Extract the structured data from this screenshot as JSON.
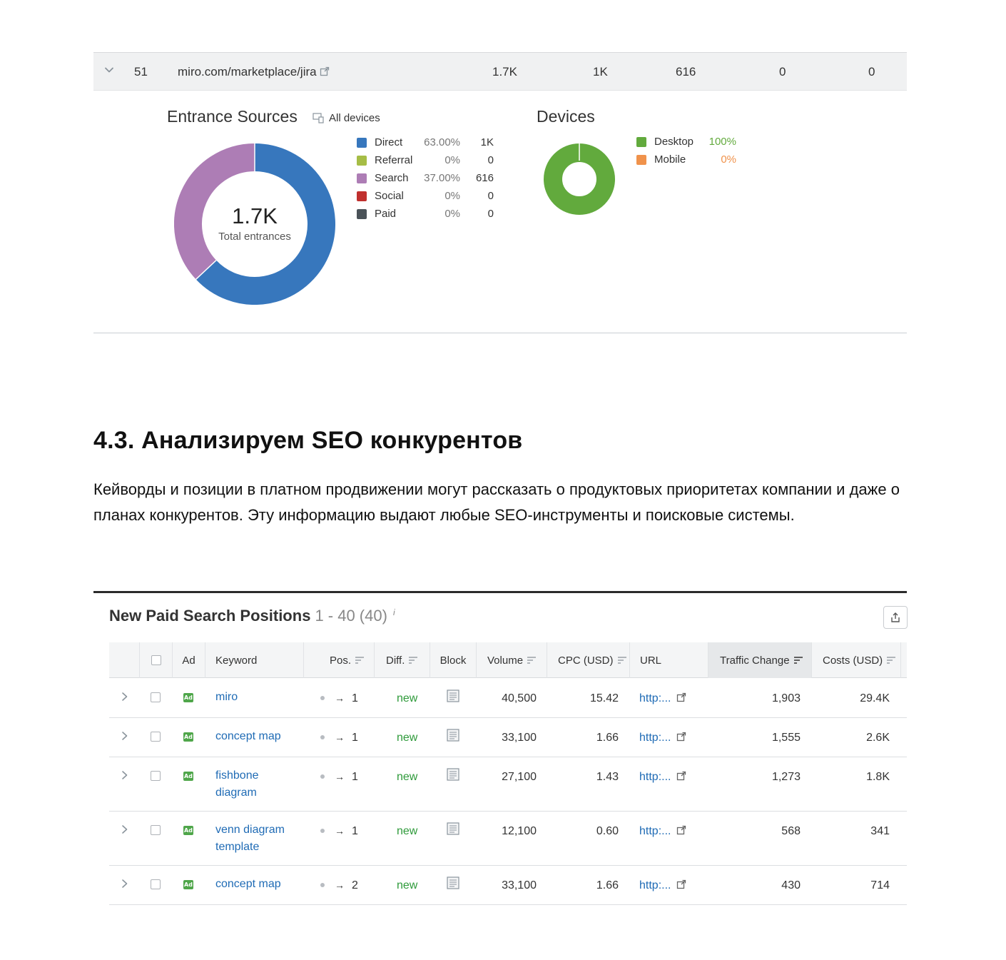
{
  "top_row": {
    "index": "51",
    "url": "miro.com/marketplace/jira",
    "col1": "1.7K",
    "col2": "1K",
    "col3": "616",
    "col4": "0",
    "col5": "0"
  },
  "entrance_sources": {
    "title": "Entrance Sources",
    "device_filter": "All devices",
    "total": "1.7K",
    "total_label": "Total entrances",
    "items": [
      {
        "label": "Direct",
        "pct": "63.00%",
        "value": "1K",
        "color": "#3777bd"
      },
      {
        "label": "Referral",
        "pct": "0%",
        "value": "0",
        "color": "#a6bd46"
      },
      {
        "label": "Search",
        "pct": "37.00%",
        "value": "616",
        "color": "#ad7db5"
      },
      {
        "label": "Social",
        "pct": "0%",
        "value": "0",
        "color": "#c0302e"
      },
      {
        "label": "Paid",
        "pct": "0%",
        "value": "0",
        "color": "#4a5258"
      }
    ]
  },
  "devices": {
    "title": "Devices",
    "items": [
      {
        "label": "Desktop",
        "pct": "100%",
        "color": "#62aa3d"
      },
      {
        "label": "Mobile",
        "pct": "0%",
        "color": "#f0924b"
      }
    ]
  },
  "article": {
    "heading": "4.3. Анализируем SEO конкурентов",
    "paragraph": "Кейворды и позиции в платном продвижении могут рассказать о продуктовых приоритетах компании и даже о планах конкурентов. Эту информацию выдают любые SEO-инструменты и поисковые системы."
  },
  "table": {
    "title": "New Paid Search Positions",
    "range": "1 - 40 (40)",
    "info": "i",
    "columns": {
      "ad": "Ad",
      "keyword": "Keyword",
      "pos": "Pos.",
      "diff": "Diff.",
      "block": "Block",
      "volume": "Volume",
      "cpc": "CPC (USD)",
      "url": "URL",
      "traffic_change": "Traffic Change",
      "costs": "Costs (USD)"
    },
    "rows": [
      {
        "keyword": "miro",
        "pos": "1",
        "diff": "new",
        "volume": "40,500",
        "cpc": "15.42",
        "url": "http:...",
        "traffic": "1,903",
        "costs": "29.4K"
      },
      {
        "keyword": "concept map",
        "pos": "1",
        "diff": "new",
        "volume": "33,100",
        "cpc": "1.66",
        "url": "http:...",
        "traffic": "1,555",
        "costs": "2.6K"
      },
      {
        "keyword": "fishbone diagram",
        "pos": "1",
        "diff": "new",
        "volume": "27,100",
        "cpc": "1.43",
        "url": "http:...",
        "traffic": "1,273",
        "costs": "1.8K"
      },
      {
        "keyword": "venn diagram template",
        "pos": "1",
        "diff": "new",
        "volume": "12,100",
        "cpc": "0.60",
        "url": "http:...",
        "traffic": "568",
        "costs": "341"
      },
      {
        "keyword": "concept map",
        "pos": "2",
        "diff": "new",
        "volume": "33,100",
        "cpc": "1.66",
        "url": "http:...",
        "traffic": "430",
        "costs": "714"
      }
    ]
  }
}
